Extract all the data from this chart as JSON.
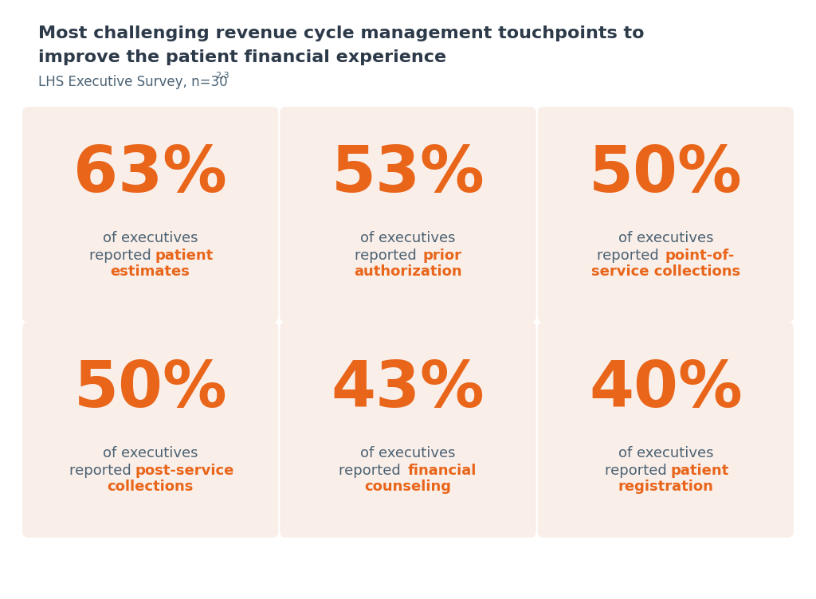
{
  "title_line1": "Most challenging revenue cycle management touchpoints to",
  "title_line2": "improve the patient financial experience",
  "subtitle": "LHS Executive Survey, n=30",
  "subtitle_superscript": "2,3",
  "background_color": "#ffffff",
  "card_bg_color": "#faeee8",
  "orange_color": "#e8651a",
  "dark_text_color": "#4a6274",
  "title_color": "#2d3a4a",
  "cards": [
    {
      "percent": "63%",
      "desc_plain": "of executives\nreported ",
      "desc_bold": "patient\nestimates",
      "row": 0,
      "col": 0
    },
    {
      "percent": "53%",
      "desc_plain": "of executives\nreported ",
      "desc_bold": "prior\nauthorization",
      "row": 0,
      "col": 1
    },
    {
      "percent": "50%",
      "desc_plain": "of executives\nreported ",
      "desc_bold": "point-of-\nservice collections",
      "row": 0,
      "col": 2
    },
    {
      "percent": "50%",
      "desc_plain": "of executives\nreported ",
      "desc_bold": "post-service\ncollections",
      "row": 1,
      "col": 0
    },
    {
      "percent": "43%",
      "desc_plain": "of executives\nreported ",
      "desc_bold": "financial\ncounseling",
      "row": 1,
      "col": 1
    },
    {
      "percent": "40%",
      "desc_plain": "of executives\nreported ",
      "desc_bold": "patient\nregistration",
      "row": 1,
      "col": 2
    }
  ],
  "title_fontsize": 16,
  "subtitle_fontsize": 12,
  "percent_fontsize": 58,
  "desc_fontsize": 13
}
